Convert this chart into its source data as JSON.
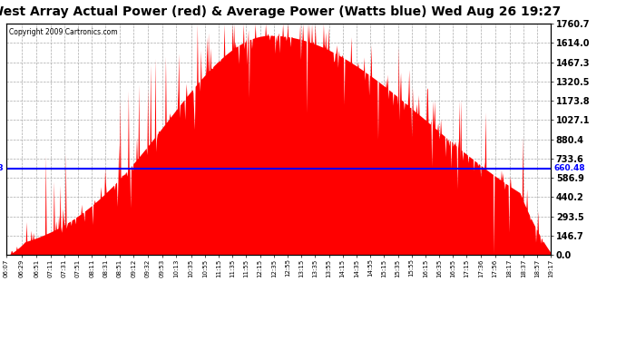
{
  "title": "West Array Actual Power (red) & Average Power (Watts blue) Wed Aug 26 19:27",
  "copyright": "Copyright 2009 Cartronics.com",
  "avg_power": 660.48,
  "ymax": 1760.7,
  "ymin": 0.0,
  "yticks": [
    0.0,
    146.7,
    293.5,
    440.2,
    586.9,
    733.6,
    880.4,
    1027.1,
    1173.8,
    1320.5,
    1467.3,
    1614.0,
    1760.7
  ],
  "fill_color": "#FF0000",
  "line_color": "#0000FF",
  "bg_color": "#FFFFFF",
  "grid_color": "#AAAAAA",
  "title_fontsize": 10,
  "total_minutes": 790,
  "label_times": [
    "06:07",
    "06:29",
    "06:51",
    "07:11",
    "07:31",
    "07:51",
    "08:11",
    "08:31",
    "08:51",
    "09:12",
    "09:32",
    "09:53",
    "10:13",
    "10:35",
    "10:55",
    "11:15",
    "11:35",
    "11:55",
    "12:15",
    "12:35",
    "12:55",
    "13:15",
    "13:35",
    "13:55",
    "14:15",
    "14:35",
    "14:55",
    "15:15",
    "15:35",
    "15:55",
    "16:15",
    "16:35",
    "16:55",
    "17:15",
    "17:36",
    "17:56",
    "18:17",
    "18:37",
    "18:57",
    "19:17"
  ]
}
